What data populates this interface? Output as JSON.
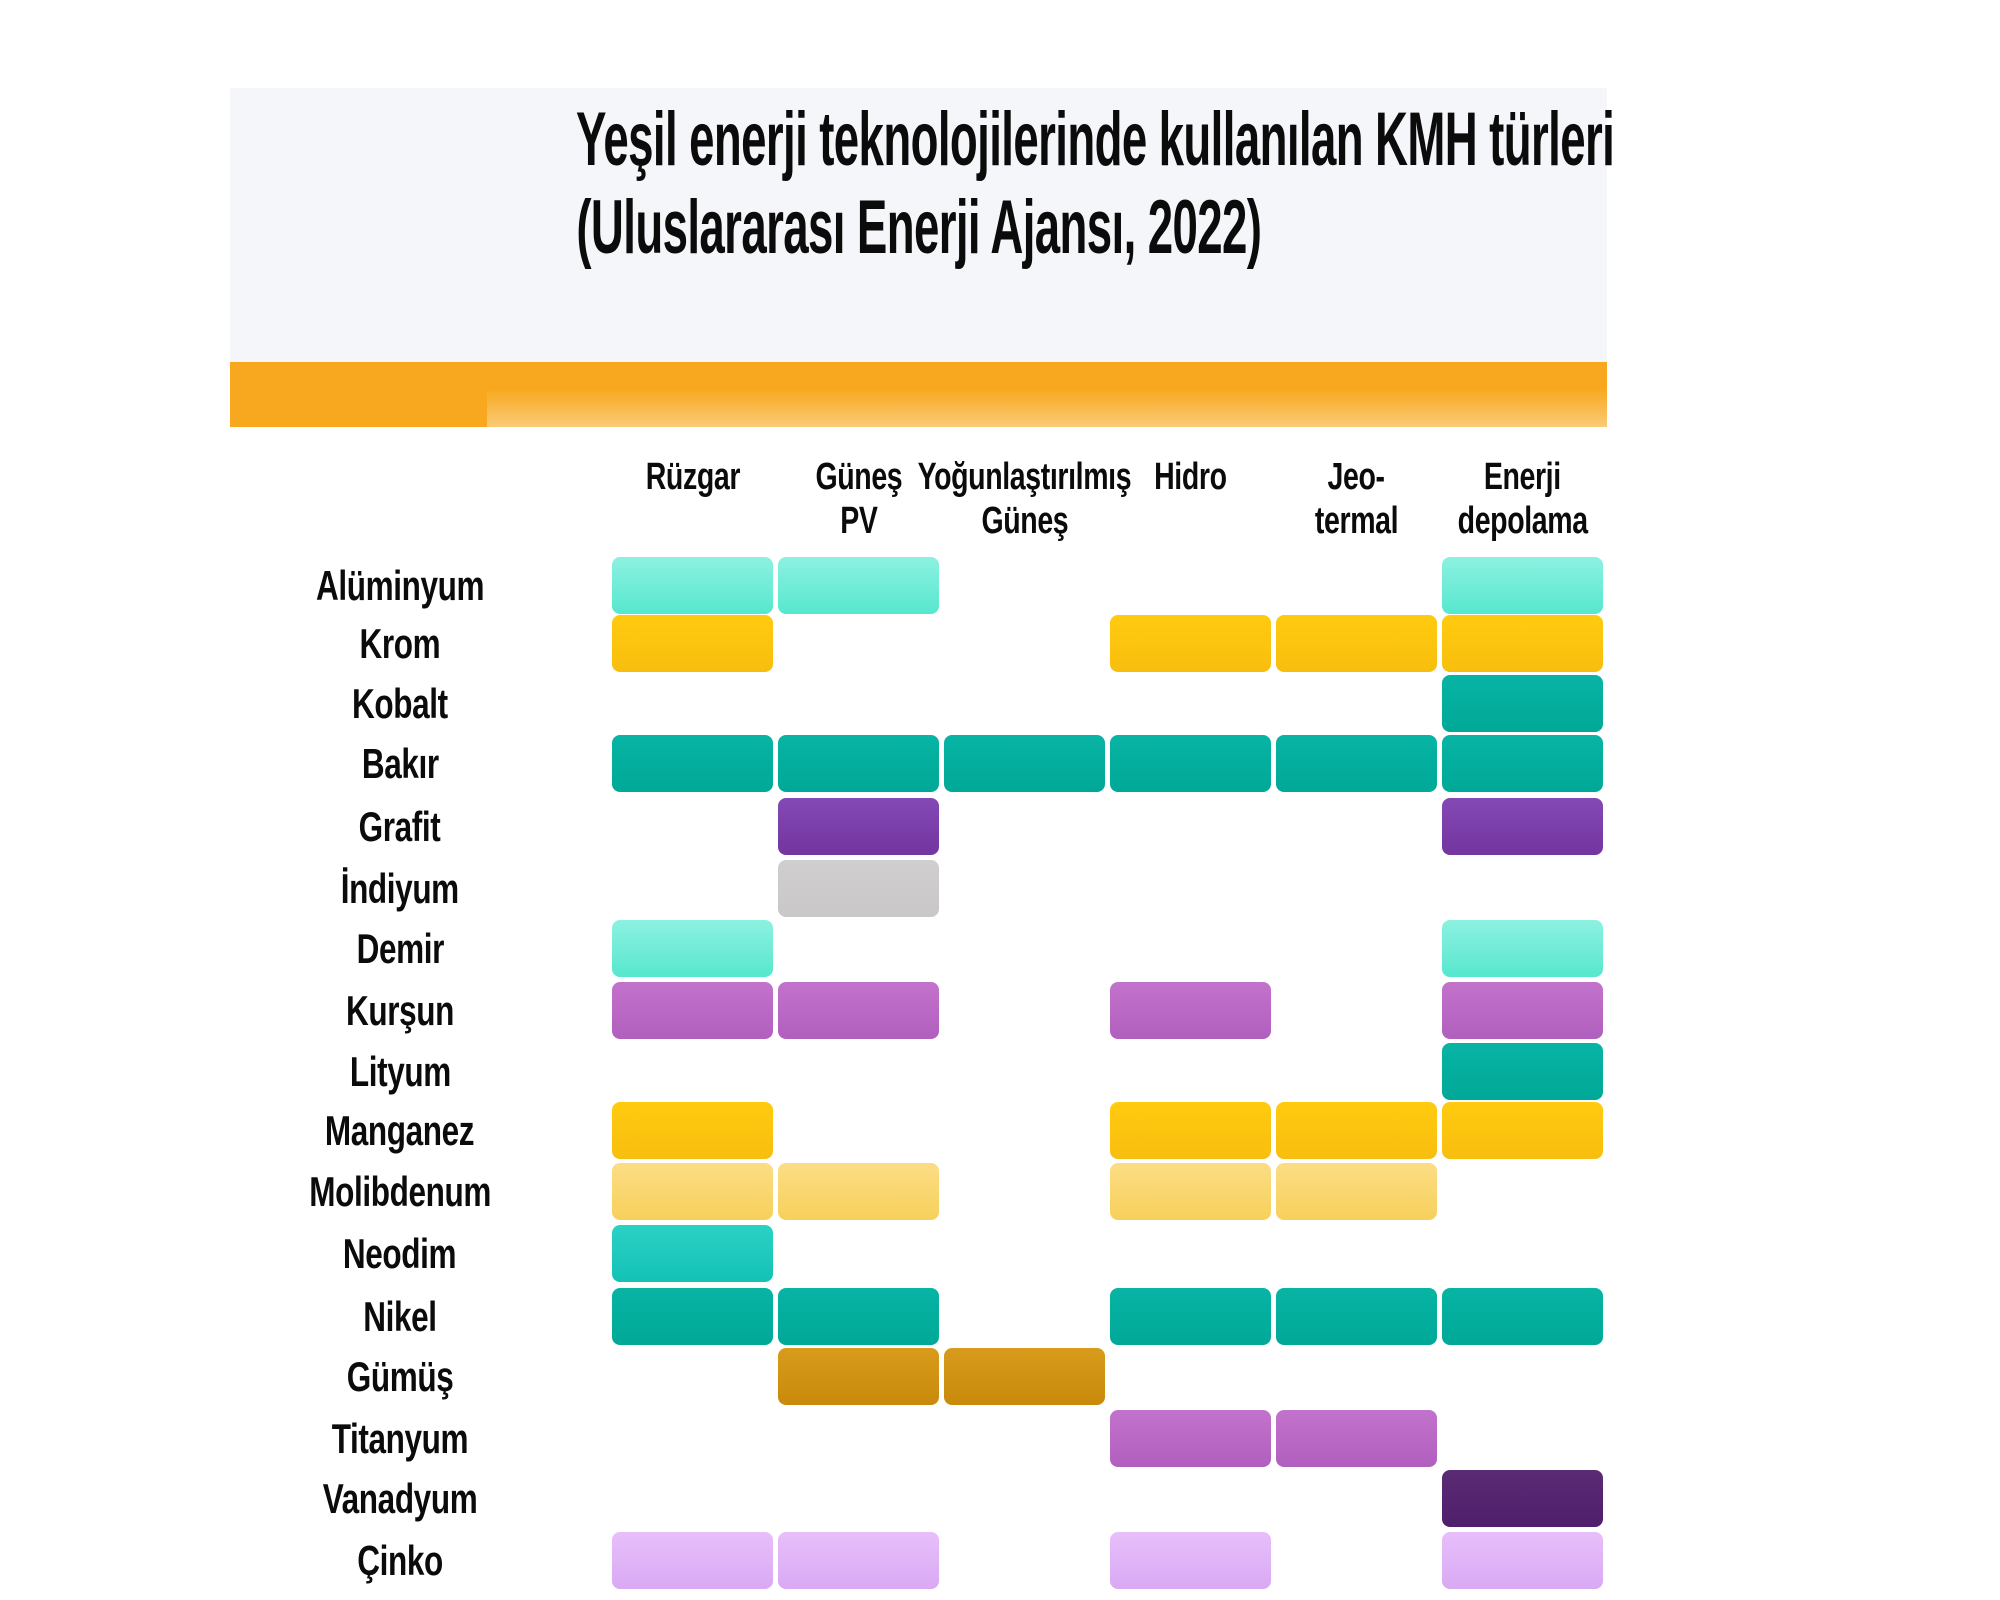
{
  "title_line1": "Yeşil enerji teknolojilerinde kullanılan KMH türleri",
  "title_line2": "(Uluslararası Enerji Ajansı, 2022)",
  "chart_data": {
    "type": "heatmap",
    "title": "Yeşil enerji teknolojilerinde kullanılan KMH türleri (Uluslararası Enerji Ajansı, 2022)",
    "subtitle": "(Uluslararası Enerji Ajansı, 2022)",
    "legend_position": "none",
    "grid": "off",
    "columns": [
      "Rüzgar",
      "Güneş PV",
      "Yoğunlaştırılmış Güneş",
      "Hidro",
      "Jeo-termal",
      "Enerji depolama"
    ],
    "column_label_lines": [
      [
        "Rüzgar"
      ],
      [
        "Güneş",
        "PV"
      ],
      [
        "Yoğunlaştırılmış",
        "Güneş"
      ],
      [
        "Hidro"
      ],
      [
        "Jeo-",
        "termal"
      ],
      [
        "Enerji",
        "depolama"
      ]
    ],
    "rows": [
      "Alüminyum",
      "Krom",
      "Kobalt",
      "Bakır",
      "Grafit",
      "İndiyum",
      "Demir",
      "Kurşun",
      "Lityum",
      "Manganez",
      "Molibdenum",
      "Neodim",
      "Nikel",
      "Gümüş",
      "Titanyum",
      "Vanadyum",
      "Çinko"
    ],
    "cells": [
      [
        "aqua",
        "aqua",
        null,
        null,
        null,
        "aqua"
      ],
      [
        "gold",
        null,
        null,
        "gold",
        "gold",
        "gold"
      ],
      [
        null,
        null,
        null,
        null,
        null,
        "teal"
      ],
      [
        "teal",
        "teal",
        "teal",
        "teal",
        "teal",
        "teal"
      ],
      [
        null,
        "purple",
        null,
        null,
        null,
        "purple"
      ],
      [
        null,
        "gray",
        null,
        null,
        null,
        null
      ],
      [
        "aqua",
        null,
        null,
        null,
        null,
        "aqua"
      ],
      [
        "orchid",
        "orchid",
        null,
        "orchid",
        null,
        "orchid"
      ],
      [
        null,
        null,
        null,
        null,
        null,
        "teal"
      ],
      [
        "gold",
        null,
        null,
        "gold",
        "gold",
        "gold"
      ],
      [
        "lightgold",
        "lightgold",
        null,
        "lightgold",
        "lightgold",
        null
      ],
      [
        "turquoise",
        null,
        null,
        null,
        null,
        null
      ],
      [
        "teal",
        "teal",
        null,
        "teal",
        "teal",
        "teal"
      ],
      [
        null,
        "ochre",
        "ochre",
        null,
        null,
        null
      ],
      [
        null,
        null,
        null,
        "orchid",
        "orchid",
        null
      ],
      [
        null,
        null,
        null,
        null,
        null,
        "darkpurple"
      ],
      [
        "lavender",
        "lavender",
        null,
        "lavender",
        null,
        "lavender"
      ]
    ],
    "palette": {
      "aqua": [
        "#8DF1E1",
        "#57E7CE"
      ],
      "turquoise": [
        "#2BD1C5",
        "#13C2B5"
      ],
      "teal": [
        "#08B4A4",
        "#00A897"
      ],
      "gold": [
        "#FFCB0F",
        "#F8BE0F"
      ],
      "lightgold": [
        "#FBDD85",
        "#F7D05B"
      ],
      "purple": [
        "#8449B6",
        "#73359F"
      ],
      "gray": [
        "#D0CECF",
        "#C9C7C8"
      ],
      "orchid": [
        "#C273CC",
        "#B15FBE"
      ],
      "ochre": [
        "#D89B1C",
        "#C98A0B"
      ],
      "darkpurple": [
        "#5A2A75",
        "#4F1F6B"
      ],
      "lavender": [
        "#E7BFFA",
        "#D9A9F3"
      ]
    },
    "colors": {
      "band_orange": "#F8A81F",
      "band_orange_fade": "#FACB77",
      "panel_background": "#F5F6FA",
      "text": "#111111"
    }
  }
}
